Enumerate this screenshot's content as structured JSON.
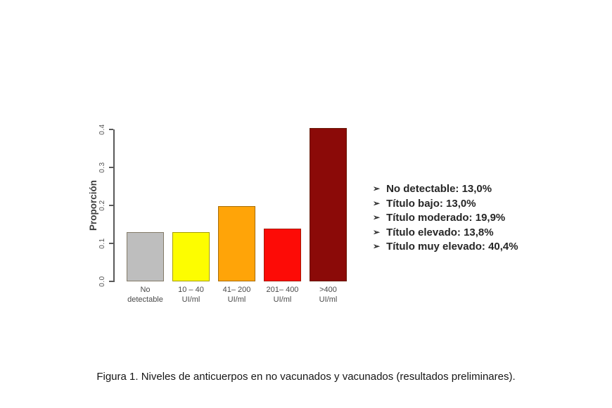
{
  "chart_data": {
    "type": "bar",
    "title": "",
    "xlabel": "",
    "ylabel": "Proporción",
    "ylim": [
      0,
      0.4
    ],
    "grid": false,
    "legend_position": "right-of-plot",
    "yticks": [
      "0.0",
      "0.1",
      "0.2",
      "0.3",
      "0.4"
    ],
    "categories": [
      [
        "No",
        "detectable"
      ],
      [
        "10 – 40",
        "UI/ml"
      ],
      [
        "41– 200",
        "UI/ml"
      ],
      [
        "201– 400",
        "UI/ml"
      ],
      [
        ">400",
        "UI/ml"
      ]
    ],
    "values": [
      0.13,
      0.13,
      0.199,
      0.138,
      0.404
    ],
    "bar_colors": [
      "#bebebe",
      "#fdfd00",
      "#ffa408",
      "#fd0b06",
      "#8b0a08"
    ]
  },
  "legend": {
    "bullet": "➢",
    "items": [
      {
        "label": "No detectable",
        "value": "13,0%"
      },
      {
        "label": "Título bajo",
        "value": "13,0%"
      },
      {
        "label": "Título moderado",
        "value": "19,9%"
      },
      {
        "label": "Título elevado",
        "value": "13,8%"
      },
      {
        "label": "Título muy elevado",
        "value": "40,4%"
      }
    ]
  },
  "caption": "Figura 1. Niveles de anticuerpos en no vacunados y vacunados (resultados preliminares)."
}
